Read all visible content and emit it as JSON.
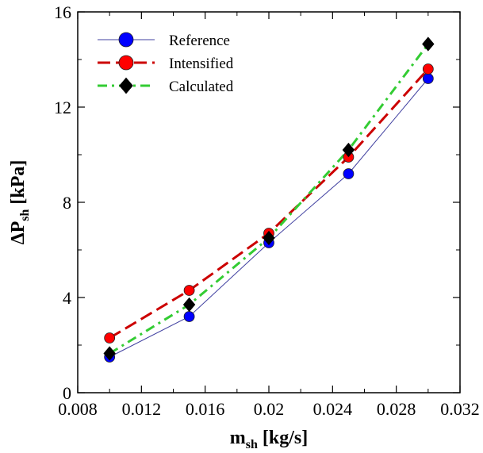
{
  "chart_data": {
    "type": "line",
    "x": [
      0.01,
      0.015,
      0.02,
      0.025,
      0.03
    ],
    "series": [
      {
        "name": "Reference",
        "values": [
          1.5,
          3.2,
          6.3,
          9.2,
          13.2
        ],
        "color": "#0000ff",
        "line_color": "#4040a0",
        "line_style": "solid",
        "marker": "circle"
      },
      {
        "name": "Intensified",
        "values": [
          2.3,
          4.3,
          6.7,
          9.9,
          13.6
        ],
        "color": "#ff0000",
        "line_color": "#cc0000",
        "line_style": "dashed",
        "marker": "circle"
      },
      {
        "name": "Calculated",
        "values": [
          1.65,
          3.7,
          6.5,
          10.2,
          14.65
        ],
        "color": "#000000",
        "line_color": "#33cc33",
        "line_style": "dashdot",
        "marker": "diamond"
      }
    ],
    "xlim": [
      0.008,
      0.032
    ],
    "ylim": [
      0,
      16
    ],
    "xticks": [
      "0.008",
      "0.012",
      "0.016",
      "0.02",
      "0.024",
      "0.028",
      "0.032"
    ],
    "yticks": [
      "0",
      "4",
      "8",
      "12",
      "16"
    ],
    "xlabel_main": "m",
    "xlabel_sub": "sh",
    "xlabel_unit": " [kg/s]",
    "ylabel_main": "ΔP",
    "ylabel_sub": "sh",
    "ylabel_unit": " [kPa]",
    "grid": false,
    "legend_position": "top-left"
  }
}
